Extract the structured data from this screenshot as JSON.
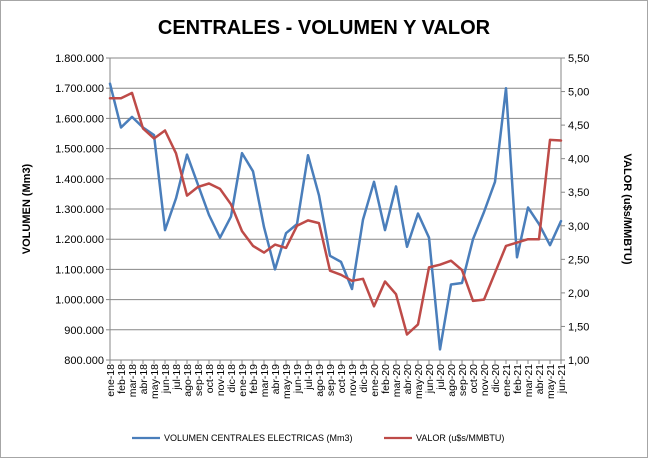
{
  "chart_data": {
    "type": "line",
    "title": "CENTRALES - VOLUMEN Y VALOR",
    "ylabel_left": "VOLUMEN (Mm3)",
    "ylabel_right": "VALOR (u$s/MMBTU)",
    "ylim_left": [
      800000,
      1800000
    ],
    "ylim_right": [
      1.0,
      5.5
    ],
    "yticks_left": [
      "800.000",
      "900.000",
      "1.000.000",
      "1.100.000",
      "1.200.000",
      "1.300.000",
      "1.400.000",
      "1.500.000",
      "1.600.000",
      "1.700.000",
      "1.800.000"
    ],
    "yticks_right": [
      "1,00",
      "1,50",
      "2,00",
      "2,50",
      "3,00",
      "3,50",
      "4,00",
      "4,50",
      "5,00",
      "5,50"
    ],
    "categories": [
      "ene-18",
      "feb-18",
      "mar-18",
      "abr-18",
      "may-18",
      "jun-18",
      "jul-18",
      "ago-18",
      "sep-18",
      "oct-18",
      "nov-18",
      "dic-18",
      "ene-19",
      "feb-19",
      "mar-19",
      "abr-19",
      "may-19",
      "jun-19",
      "jul-19",
      "ago-19",
      "sep-19",
      "oct-19",
      "nov-19",
      "dic-19",
      "ene-20",
      "feb-20",
      "mar-20",
      "abr-20",
      "may-20",
      "jun-20",
      "jul-20",
      "ago-20",
      "sep-20",
      "oct-20",
      "nov-20",
      "dic-20",
      "ene-21",
      "feb-21",
      "mar-21",
      "abr-21",
      "may-21",
      "jun-21"
    ],
    "series": [
      {
        "name": "VOLUMEN CENTRALES ELECTRICAS (Mm3)",
        "axis": "left",
        "color": "#4a7ebb",
        "values": [
          1715000,
          1570000,
          1605000,
          1570000,
          1545000,
          1230000,
          1335000,
          1480000,
          1380000,
          1280000,
          1205000,
          1275000,
          1485000,
          1425000,
          1240000,
          1100000,
          1220000,
          1250000,
          1478000,
          1345000,
          1145000,
          1125000,
          1035000,
          1265000,
          1390000,
          1230000,
          1375000,
          1175000,
          1285000,
          1205000,
          835000,
          1050000,
          1055000,
          1200000,
          1290000,
          1390000,
          1700000,
          1140000,
          1305000,
          1250000,
          1180000,
          1260000
        ]
      },
      {
        "name": "VALOR (u$s/MMBTU)",
        "axis": "right",
        "color": "#be4b48",
        "values": [
          4.9,
          4.9,
          4.98,
          4.45,
          4.3,
          4.42,
          4.08,
          3.45,
          3.58,
          3.63,
          3.55,
          3.32,
          2.92,
          2.7,
          2.6,
          2.72,
          2.67,
          3.0,
          3.08,
          3.04,
          2.33,
          2.27,
          2.18,
          2.21,
          1.8,
          2.17,
          1.98,
          1.38,
          1.53,
          2.38,
          2.42,
          2.48,
          2.34,
          1.88,
          1.9,
          2.3,
          2.7,
          2.75,
          2.8,
          2.8,
          4.28,
          4.27
        ]
      }
    ],
    "grid": true,
    "legend_position": "bottom"
  }
}
